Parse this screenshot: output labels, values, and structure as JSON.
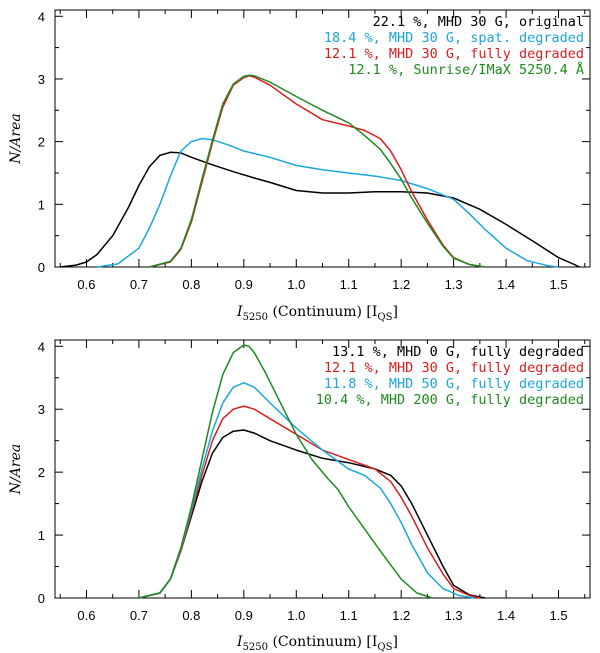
{
  "chart_data": [
    {
      "type": "line",
      "xlabel_main": "I",
      "xlabel_sub": "5250",
      "xlabel_rest": " (Continuum) [I",
      "xlabel_unit_sub": "QS",
      "xlabel_close": "]",
      "ylabel": "N/Area",
      "xlim": [
        0.54,
        1.56
      ],
      "ylim": [
        0,
        4.1
      ],
      "xticks": [
        "0.6",
        "0.7",
        "0.8",
        "0.9",
        "1.0",
        "1.1",
        "1.2",
        "1.3",
        "1.4",
        "1.5"
      ],
      "yticks": [
        "0",
        "1",
        "2",
        "3",
        "4"
      ],
      "series": [
        {
          "name": "22.1%, MHD 30 G, original",
          "legend": "22.1 %, MHD 30 G, original",
          "color": "#000000",
          "x": [
            0.55,
            0.58,
            0.6,
            0.62,
            0.65,
            0.68,
            0.7,
            0.72,
            0.74,
            0.76,
            0.78,
            0.8,
            0.84,
            0.88,
            0.92,
            0.95,
            1.0,
            1.05,
            1.1,
            1.15,
            1.2,
            1.25,
            1.3,
            1.35,
            1.4,
            1.45,
            1.5,
            1.53,
            1.54
          ],
          "y": [
            0.0,
            0.03,
            0.08,
            0.2,
            0.5,
            0.95,
            1.3,
            1.6,
            1.78,
            1.83,
            1.82,
            1.75,
            1.63,
            1.52,
            1.42,
            1.35,
            1.22,
            1.18,
            1.18,
            1.2,
            1.2,
            1.18,
            1.1,
            0.92,
            0.68,
            0.42,
            0.15,
            0.04,
            0.0
          ]
        },
        {
          "name": "18.4%, MHD 30 G, spat. degraded",
          "legend": "18.4 %, MHD 30 G, spat. degraded",
          "color": "#1ca7dc",
          "x": [
            0.62,
            0.66,
            0.7,
            0.72,
            0.74,
            0.76,
            0.78,
            0.8,
            0.82,
            0.84,
            0.87,
            0.9,
            0.95,
            1.0,
            1.05,
            1.1,
            1.15,
            1.2,
            1.25,
            1.3,
            1.33,
            1.36,
            1.4,
            1.44,
            1.48,
            1.5
          ],
          "y": [
            0.0,
            0.05,
            0.3,
            0.62,
            1.0,
            1.45,
            1.85,
            2.0,
            2.05,
            2.03,
            1.95,
            1.85,
            1.75,
            1.62,
            1.55,
            1.5,
            1.45,
            1.38,
            1.25,
            1.08,
            0.85,
            0.6,
            0.3,
            0.1,
            0.02,
            0.0
          ]
        },
        {
          "name": "12.1%, MHD 30 G, fully degraded",
          "legend": "12.1 %, MHD 30 G, fully degraded",
          "color": "#d81e1e",
          "x": [
            0.72,
            0.76,
            0.78,
            0.8,
            0.82,
            0.84,
            0.86,
            0.88,
            0.9,
            0.91,
            0.92,
            0.95,
            1.0,
            1.05,
            1.1,
            1.13,
            1.16,
            1.18,
            1.2,
            1.22,
            1.25,
            1.28,
            1.3,
            1.33,
            1.36
          ],
          "y": [
            0.0,
            0.08,
            0.28,
            0.72,
            1.35,
            1.98,
            2.55,
            2.9,
            3.02,
            3.05,
            3.03,
            2.9,
            2.6,
            2.35,
            2.25,
            2.18,
            2.05,
            1.85,
            1.55,
            1.2,
            0.75,
            0.35,
            0.15,
            0.04,
            0.0
          ]
        },
        {
          "name": "12.1%, Sunrise/IMaX 5250.4 A",
          "legend": "12.1 %, Sunrise/IMaX 5250.4 Å",
          "color": "#1f8a1f",
          "x": [
            0.72,
            0.76,
            0.78,
            0.8,
            0.82,
            0.84,
            0.86,
            0.88,
            0.9,
            0.91,
            0.92,
            0.95,
            1.0,
            1.05,
            1.1,
            1.13,
            1.16,
            1.18,
            1.2,
            1.22,
            1.25,
            1.28,
            1.3,
            1.33,
            1.36
          ],
          "y": [
            0.0,
            0.09,
            0.3,
            0.76,
            1.4,
            2.02,
            2.6,
            2.92,
            3.04,
            3.06,
            3.05,
            2.95,
            2.72,
            2.5,
            2.3,
            2.1,
            1.88,
            1.65,
            1.4,
            1.1,
            0.7,
            0.33,
            0.14,
            0.04,
            0.0
          ]
        }
      ]
    },
    {
      "type": "line",
      "xlabel_main": "I",
      "xlabel_sub": "5250",
      "xlabel_rest": " (Continuum) [I",
      "xlabel_unit_sub": "QS",
      "xlabel_close": "]",
      "ylabel": "N/Area",
      "xlim": [
        0.54,
        1.56
      ],
      "ylim": [
        0,
        4.1
      ],
      "xticks": [
        "0.6",
        "0.7",
        "0.8",
        "0.9",
        "1.0",
        "1.1",
        "1.2",
        "1.3",
        "1.4",
        "1.5"
      ],
      "yticks": [
        "0",
        "1",
        "2",
        "3",
        "4"
      ],
      "series": [
        {
          "name": "13.1%, MHD 0 G, fully degraded",
          "legend": "13.1 %, MHD   0 G, fully degraded",
          "color": "#000000",
          "x": [
            0.7,
            0.74,
            0.76,
            0.78,
            0.8,
            0.82,
            0.84,
            0.86,
            0.88,
            0.9,
            0.92,
            0.95,
            1.0,
            1.05,
            1.1,
            1.15,
            1.18,
            1.2,
            1.22,
            1.25,
            1.28,
            1.3,
            1.33,
            1.36
          ],
          "y": [
            0.0,
            0.08,
            0.3,
            0.75,
            1.3,
            1.85,
            2.3,
            2.55,
            2.65,
            2.67,
            2.62,
            2.5,
            2.35,
            2.22,
            2.15,
            2.05,
            1.95,
            1.78,
            1.5,
            1.0,
            0.5,
            0.2,
            0.05,
            0.0
          ]
        },
        {
          "name": "12.1%, MHD 30 G, fully degraded",
          "legend": "12.1 %, MHD  30 G, fully degraded",
          "color": "#d81e1e",
          "x": [
            0.7,
            0.74,
            0.76,
            0.78,
            0.8,
            0.82,
            0.84,
            0.86,
            0.88,
            0.9,
            0.92,
            0.95,
            1.0,
            1.05,
            1.1,
            1.15,
            1.18,
            1.2,
            1.22,
            1.25,
            1.28,
            1.3,
            1.33,
            1.35
          ],
          "y": [
            0.0,
            0.08,
            0.3,
            0.75,
            1.35,
            1.95,
            2.5,
            2.85,
            3.0,
            3.05,
            3.0,
            2.85,
            2.6,
            2.35,
            2.2,
            2.05,
            1.85,
            1.6,
            1.3,
            0.8,
            0.38,
            0.15,
            0.04,
            0.0
          ]
        },
        {
          "name": "11.8%, MHD 50 G, fully degraded",
          "legend": "11.8 %, MHD  50 G, fully degraded",
          "color": "#1ca7dc",
          "x": [
            0.7,
            0.74,
            0.76,
            0.78,
            0.8,
            0.82,
            0.84,
            0.86,
            0.88,
            0.9,
            0.92,
            0.95,
            1.0,
            1.05,
            1.1,
            1.13,
            1.16,
            1.18,
            1.2,
            1.22,
            1.25,
            1.28,
            1.31,
            1.34
          ],
          "y": [
            0.0,
            0.08,
            0.3,
            0.78,
            1.4,
            2.05,
            2.65,
            3.1,
            3.35,
            3.42,
            3.35,
            3.1,
            2.7,
            2.35,
            2.05,
            1.95,
            1.75,
            1.5,
            1.2,
            0.85,
            0.4,
            0.15,
            0.04,
            0.0
          ]
        },
        {
          "name": "10.4%, MHD 200 G, fully degraded",
          "legend": "10.4 %, MHD 200 G, fully degraded",
          "color": "#1f8a1f",
          "x": [
            0.7,
            0.74,
            0.76,
            0.78,
            0.8,
            0.82,
            0.84,
            0.86,
            0.88,
            0.9,
            0.91,
            0.92,
            0.94,
            0.97,
            1.0,
            1.03,
            1.06,
            1.08,
            1.1,
            1.13,
            1.16,
            1.2,
            1.23,
            1.26
          ],
          "y": [
            0.0,
            0.08,
            0.3,
            0.8,
            1.45,
            2.2,
            2.95,
            3.55,
            3.9,
            4.02,
            4.0,
            3.9,
            3.6,
            3.1,
            2.6,
            2.2,
            1.9,
            1.72,
            1.45,
            1.1,
            0.75,
            0.3,
            0.08,
            0.0
          ]
        }
      ]
    }
  ]
}
